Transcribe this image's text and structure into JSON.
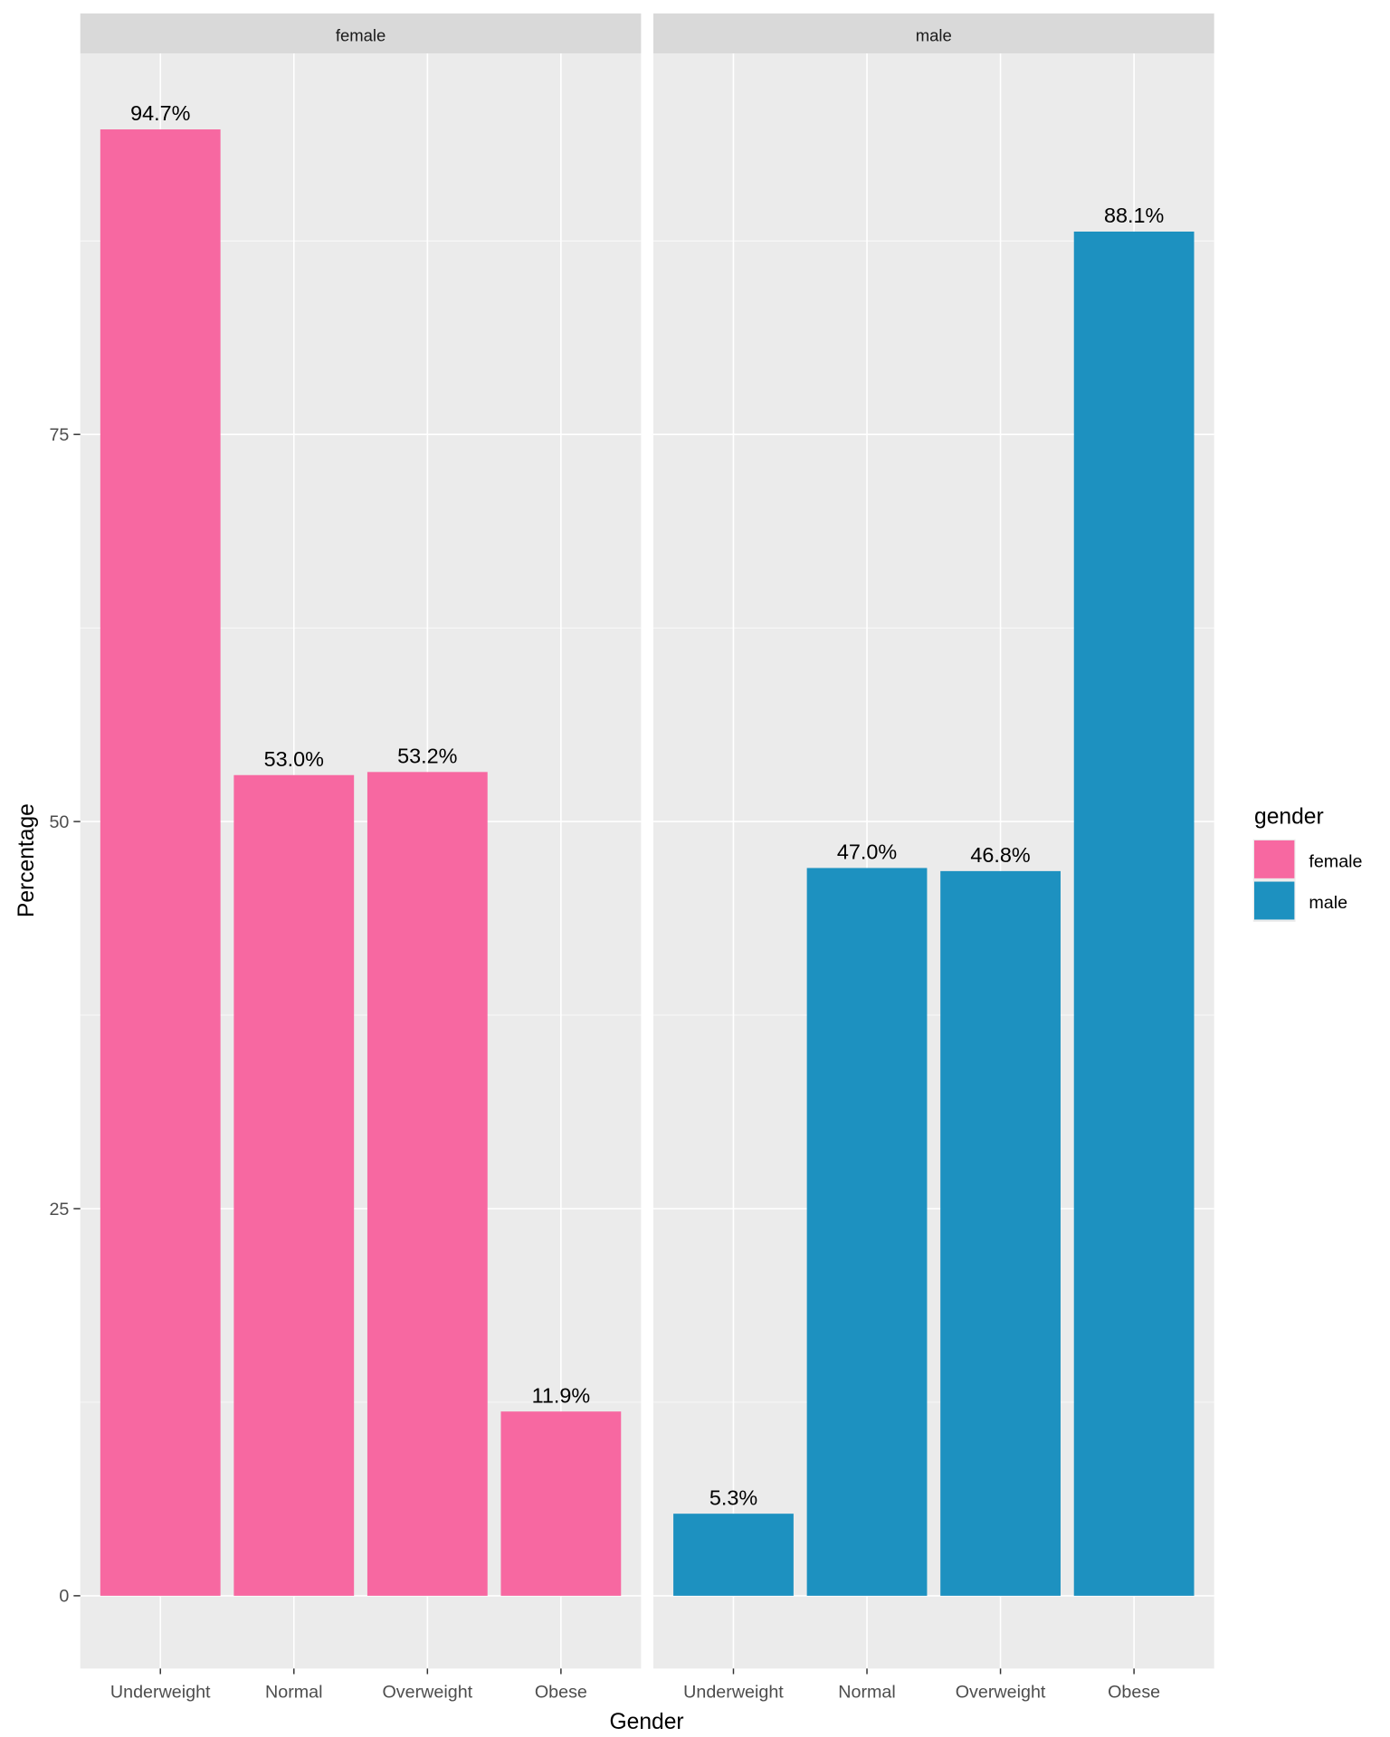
{
  "chart_data": {
    "type": "bar",
    "facets": [
      "female",
      "male"
    ],
    "categories": [
      "Underweight",
      "Normal",
      "Overweight",
      "Obese"
    ],
    "series": [
      {
        "name": "female",
        "facet": "female",
        "color": "#F768A1",
        "values": [
          94.7,
          53.0,
          53.2,
          11.9
        ],
        "labels": [
          "94.7%",
          "53.0%",
          "53.2%",
          "11.9%"
        ]
      },
      {
        "name": "male",
        "facet": "male",
        "color": "#1D91C0",
        "values": [
          5.3,
          47.0,
          46.8,
          88.1
        ],
        "labels": [
          "5.3%",
          "47.0%",
          "46.8%",
          "88.1%"
        ]
      }
    ],
    "xlabel": "Gender",
    "ylabel": "Percentage",
    "yticks": [
      0,
      25,
      50,
      75
    ],
    "ylim": [
      -4.7,
      99.6
    ],
    "grid": true,
    "legend": {
      "title": "gender",
      "position": "right",
      "entries": [
        "female",
        "male"
      ]
    }
  }
}
